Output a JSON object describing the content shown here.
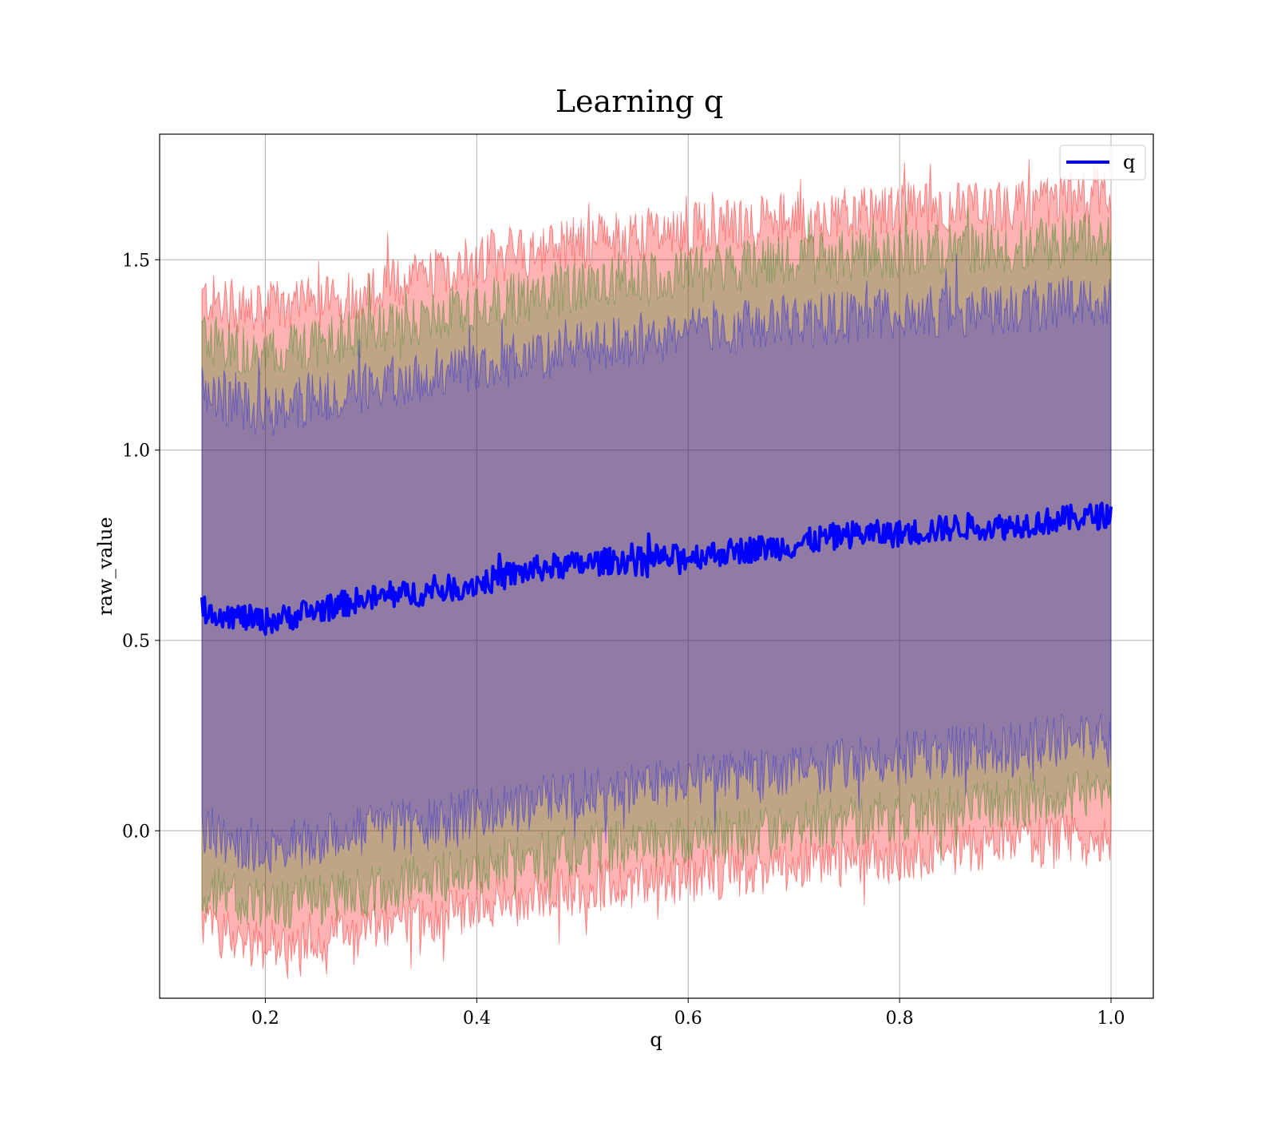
{
  "chart_data": {
    "type": "line",
    "title": "Learning q",
    "xlabel": "q",
    "ylabel": "raw_value",
    "xlim": [
      0.1,
      1.04
    ],
    "ylim": [
      -0.44,
      1.83
    ],
    "grid": true,
    "legend_position": "top-right",
    "x_ticks": [
      0.2,
      0.4,
      0.6,
      0.8,
      1.0
    ],
    "x_tick_labels": [
      "0.2",
      "0.4",
      "0.6",
      "0.8",
      "1.0"
    ],
    "y_ticks": [
      0.0,
      0.5,
      1.0,
      1.5
    ],
    "y_tick_labels": [
      "0.0",
      "0.5",
      "1.0",
      "1.5"
    ],
    "series": [
      {
        "name": "q",
        "color": "#0000ff",
        "x": [
          0.14,
          0.16,
          0.18,
          0.2,
          0.22,
          0.25,
          0.28,
          0.3,
          0.33,
          0.36,
          0.4,
          0.43,
          0.46,
          0.5,
          0.53,
          0.56,
          0.6,
          0.63,
          0.66,
          0.7,
          0.73,
          0.76,
          0.8,
          0.83,
          0.86,
          0.9,
          0.93,
          0.96,
          1.0
        ],
        "values": [
          0.58,
          0.57,
          0.56,
          0.55,
          0.56,
          0.58,
          0.6,
          0.61,
          0.62,
          0.63,
          0.65,
          0.67,
          0.69,
          0.7,
          0.71,
          0.71,
          0.72,
          0.73,
          0.74,
          0.75,
          0.77,
          0.78,
          0.78,
          0.79,
          0.8,
          0.8,
          0.81,
          0.82,
          0.83
        ]
      }
    ],
    "bands": [
      {
        "color": "#ff0000",
        "opacity": 0.3,
        "x": [
          0.14,
          0.2,
          0.3,
          0.4,
          0.5,
          0.6,
          0.7,
          0.8,
          0.9,
          1.0
        ],
        "lower": [
          -0.25,
          -0.3,
          -0.26,
          -0.2,
          -0.15,
          -0.12,
          -0.09,
          -0.07,
          -0.04,
          -0.02
        ],
        "upper": [
          1.4,
          1.36,
          1.42,
          1.5,
          1.55,
          1.58,
          1.61,
          1.63,
          1.64,
          1.67
        ]
      },
      {
        "color": "#008000",
        "opacity": 0.25,
        "x": [
          0.14,
          0.2,
          0.3,
          0.4,
          0.5,
          0.6,
          0.7,
          0.8,
          0.9,
          1.0
        ],
        "lower": [
          -0.15,
          -0.2,
          -0.16,
          -0.1,
          -0.05,
          -0.02,
          0.01,
          0.04,
          0.07,
          0.1
        ],
        "upper": [
          1.3,
          1.25,
          1.31,
          1.38,
          1.43,
          1.47,
          1.5,
          1.52,
          1.53,
          1.56
        ]
      },
      {
        "color": "#0000ff",
        "opacity": 0.25,
        "x": [
          0.14,
          0.2,
          0.3,
          0.4,
          0.5,
          0.6,
          0.7,
          0.8,
          0.9,
          1.0
        ],
        "lower": [
          0.0,
          -0.05,
          0.0,
          0.05,
          0.1,
          0.13,
          0.16,
          0.19,
          0.22,
          0.25
        ],
        "upper": [
          1.15,
          1.1,
          1.17,
          1.22,
          1.27,
          1.31,
          1.34,
          1.36,
          1.37,
          1.4
        ]
      }
    ]
  }
}
